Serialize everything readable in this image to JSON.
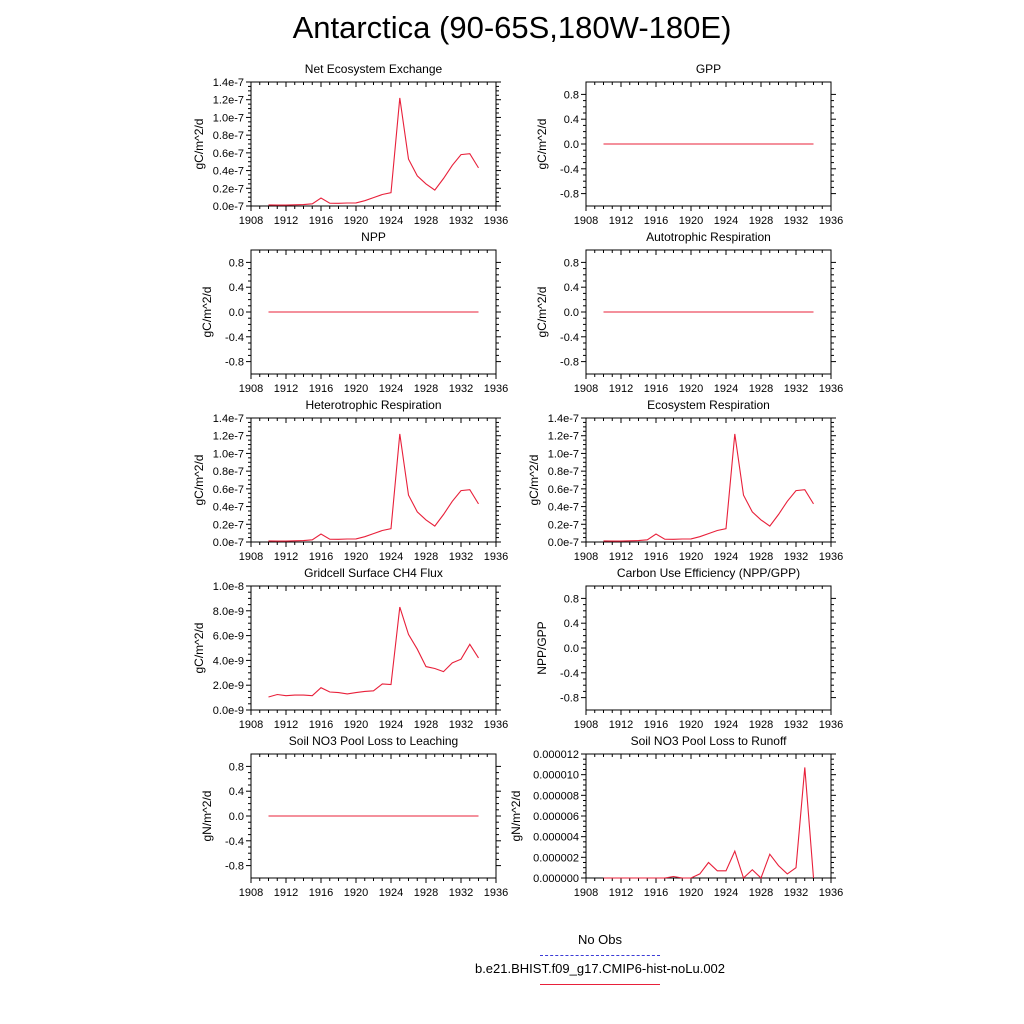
{
  "page_title": "Antarctica (90-65S,180W-180E)",
  "legend": {
    "obs_label": "No Obs",
    "obs_color": "#3b3bd6",
    "run_label": "b.e21.BHIST.f09_g17.CMIP6-hist-noLu.002",
    "run_color": "#e8203a"
  },
  "chart_data": [
    {
      "type": "line",
      "title": "Net Ecosystem Exchange",
      "ylabel": "gC/m^2/d",
      "xlim": [
        1908,
        1936
      ],
      "ylim": [
        0,
        1.4e-07
      ],
      "x_ticks": [
        "1908",
        "1912",
        "1916",
        "1920",
        "1924",
        "1928",
        "1932",
        "1936"
      ],
      "y_ticks": [
        {
          "v": 0,
          "label": "0.0e-7"
        },
        {
          "v": 2e-08,
          "label": "0.2e-7"
        },
        {
          "v": 4e-08,
          "label": "0.4e-7"
        },
        {
          "v": 6e-08,
          "label": "0.6e-7"
        },
        {
          "v": 8e-08,
          "label": "0.8e-7"
        },
        {
          "v": 1e-07,
          "label": "1.0e-7"
        },
        {
          "v": 1.2e-07,
          "label": "1.2e-7"
        },
        {
          "v": 1.4e-07,
          "label": "1.4e-7"
        }
      ],
      "x": [
        1910,
        1911,
        1912,
        1913,
        1914,
        1915,
        1916,
        1917,
        1918,
        1919,
        1920,
        1921,
        1922,
        1923,
        1924,
        1925,
        1926,
        1927,
        1928,
        1929,
        1930,
        1931,
        1932,
        1933,
        1934
      ],
      "y": [
        1.2e-09,
        1e-09,
        1e-09,
        1.3e-09,
        1.6e-09,
        2.5e-09,
        9e-09,
        3.2e-09,
        3e-09,
        3.4e-09,
        3.5e-09,
        6e-09,
        9.5e-09,
        1.3e-08,
        1.5e-08,
        1.22e-07,
        5.3e-08,
        3.4e-08,
        2.5e-08,
        1.8e-08,
        3.1e-08,
        4.6e-08,
        5.8e-08,
        5.9e-08,
        4.3e-08
      ]
    },
    {
      "type": "line",
      "title": "GPP",
      "ylabel": "gC/m^2/d",
      "xlim": [
        1908,
        1936
      ],
      "ylim": [
        -1,
        1
      ],
      "x_ticks": [
        "1908",
        "1912",
        "1916",
        "1920",
        "1924",
        "1928",
        "1932",
        "1936"
      ],
      "y_ticks": [
        {
          "v": -0.8,
          "label": "-0.8"
        },
        {
          "v": -0.4,
          "label": "-0.4"
        },
        {
          "v": 0,
          "label": "0.0"
        },
        {
          "v": 0.4,
          "label": "0.4"
        },
        {
          "v": 0.8,
          "label": "0.8"
        }
      ],
      "x": [
        1910,
        1934
      ],
      "y": [
        0,
        0
      ]
    },
    {
      "type": "line",
      "title": "NPP",
      "ylabel": "gC/m^2/d",
      "xlim": [
        1908,
        1936
      ],
      "ylim": [
        -1,
        1
      ],
      "x_ticks": [
        "1908",
        "1912",
        "1916",
        "1920",
        "1924",
        "1928",
        "1932",
        "1936"
      ],
      "y_ticks": [
        {
          "v": -0.8,
          "label": "-0.8"
        },
        {
          "v": -0.4,
          "label": "-0.4"
        },
        {
          "v": 0,
          "label": "0.0"
        },
        {
          "v": 0.4,
          "label": "0.4"
        },
        {
          "v": 0.8,
          "label": "0.8"
        }
      ],
      "x": [
        1910,
        1934
      ],
      "y": [
        0,
        0
      ]
    },
    {
      "type": "line",
      "title": "Autotrophic Respiration",
      "ylabel": "gC/m^2/d",
      "xlim": [
        1908,
        1936
      ],
      "ylim": [
        -1,
        1
      ],
      "x_ticks": [
        "1908",
        "1912",
        "1916",
        "1920",
        "1924",
        "1928",
        "1932",
        "1936"
      ],
      "y_ticks": [
        {
          "v": -0.8,
          "label": "-0.8"
        },
        {
          "v": -0.4,
          "label": "-0.4"
        },
        {
          "v": 0,
          "label": "0.0"
        },
        {
          "v": 0.4,
          "label": "0.4"
        },
        {
          "v": 0.8,
          "label": "0.8"
        }
      ],
      "x": [
        1910,
        1934
      ],
      "y": [
        0,
        0
      ]
    },
    {
      "type": "line",
      "title": "Heterotrophic Respiration",
      "ylabel": "gC/m^2/d",
      "xlim": [
        1908,
        1936
      ],
      "ylim": [
        0,
        1.4e-07
      ],
      "x_ticks": [
        "1908",
        "1912",
        "1916",
        "1920",
        "1924",
        "1928",
        "1932",
        "1936"
      ],
      "y_ticks": [
        {
          "v": 0,
          "label": "0.0e-7"
        },
        {
          "v": 2e-08,
          "label": "0.2e-7"
        },
        {
          "v": 4e-08,
          "label": "0.4e-7"
        },
        {
          "v": 6e-08,
          "label": "0.6e-7"
        },
        {
          "v": 8e-08,
          "label": "0.8e-7"
        },
        {
          "v": 1e-07,
          "label": "1.0e-7"
        },
        {
          "v": 1.2e-07,
          "label": "1.2e-7"
        },
        {
          "v": 1.4e-07,
          "label": "1.4e-7"
        }
      ],
      "x": [
        1910,
        1911,
        1912,
        1913,
        1914,
        1915,
        1916,
        1917,
        1918,
        1919,
        1920,
        1921,
        1922,
        1923,
        1924,
        1925,
        1926,
        1927,
        1928,
        1929,
        1930,
        1931,
        1932,
        1933,
        1934
      ],
      "y": [
        1.2e-09,
        1e-09,
        1e-09,
        1.3e-09,
        1.6e-09,
        2.5e-09,
        9e-09,
        3.2e-09,
        3e-09,
        3.4e-09,
        3.5e-09,
        6e-09,
        9.5e-09,
        1.3e-08,
        1.5e-08,
        1.22e-07,
        5.3e-08,
        3.4e-08,
        2.5e-08,
        1.8e-08,
        3.1e-08,
        4.6e-08,
        5.8e-08,
        5.9e-08,
        4.3e-08
      ]
    },
    {
      "type": "line",
      "title": "Ecosystem Respiration",
      "ylabel": "gC/m^2/d",
      "xlim": [
        1908,
        1936
      ],
      "ylim": [
        0,
        1.4e-07
      ],
      "x_ticks": [
        "1908",
        "1912",
        "1916",
        "1920",
        "1924",
        "1928",
        "1932",
        "1936"
      ],
      "y_ticks": [
        {
          "v": 0,
          "label": "0.0e-7"
        },
        {
          "v": 2e-08,
          "label": "0.2e-7"
        },
        {
          "v": 4e-08,
          "label": "0.4e-7"
        },
        {
          "v": 6e-08,
          "label": "0.6e-7"
        },
        {
          "v": 8e-08,
          "label": "0.8e-7"
        },
        {
          "v": 1e-07,
          "label": "1.0e-7"
        },
        {
          "v": 1.2e-07,
          "label": "1.2e-7"
        },
        {
          "v": 1.4e-07,
          "label": "1.4e-7"
        }
      ],
      "x": [
        1910,
        1911,
        1912,
        1913,
        1914,
        1915,
        1916,
        1917,
        1918,
        1919,
        1920,
        1921,
        1922,
        1923,
        1924,
        1925,
        1926,
        1927,
        1928,
        1929,
        1930,
        1931,
        1932,
        1933,
        1934
      ],
      "y": [
        1.2e-09,
        1e-09,
        1e-09,
        1.3e-09,
        1.6e-09,
        2.5e-09,
        9e-09,
        3.2e-09,
        3e-09,
        3.4e-09,
        3.5e-09,
        6e-09,
        9.5e-09,
        1.3e-08,
        1.5e-08,
        1.22e-07,
        5.3e-08,
        3.4e-08,
        2.5e-08,
        1.8e-08,
        3.1e-08,
        4.6e-08,
        5.8e-08,
        5.9e-08,
        4.3e-08
      ]
    },
    {
      "type": "line",
      "title": "Gridcell Surface CH4 Flux",
      "ylabel": "gC/m^2/d",
      "xlim": [
        1908,
        1936
      ],
      "ylim": [
        0,
        1e-08
      ],
      "x_ticks": [
        "1908",
        "1912",
        "1916",
        "1920",
        "1924",
        "1928",
        "1932",
        "1936"
      ],
      "y_ticks": [
        {
          "v": 0,
          "label": "0.0e-9"
        },
        {
          "v": 2e-09,
          "label": "2.0e-9"
        },
        {
          "v": 4e-09,
          "label": "4.0e-9"
        },
        {
          "v": 6e-09,
          "label": "6.0e-9"
        },
        {
          "v": 8e-09,
          "label": "8.0e-9"
        },
        {
          "v": 1e-08,
          "label": "1.0e-8"
        }
      ],
      "x": [
        1910,
        1911,
        1912,
        1913,
        1914,
        1915,
        1916,
        1917,
        1918,
        1919,
        1920,
        1921,
        1922,
        1923,
        1924,
        1925,
        1926,
        1927,
        1928,
        1929,
        1930,
        1931,
        1932,
        1933,
        1934
      ],
      "y": [
        1.05e-09,
        1.25e-09,
        1.15e-09,
        1.2e-09,
        1.2e-09,
        1.15e-09,
        1.8e-09,
        1.45e-09,
        1.4e-09,
        1.3e-09,
        1.4e-09,
        1.5e-09,
        1.55e-09,
        2.1e-09,
        2.05e-09,
        8.3e-09,
        6.1e-09,
        4.9e-09,
        3.5e-09,
        3.35e-09,
        3.1e-09,
        3.8e-09,
        4.1e-09,
        5.3e-09,
        4.2e-09
      ]
    },
    {
      "type": "line",
      "title": "Carbon Use Efficiency (NPP/GPP)",
      "ylabel": "NPP/GPP",
      "xlim": [
        1908,
        1936
      ],
      "ylim": [
        -1,
        1
      ],
      "x_ticks": [
        "1908",
        "1912",
        "1916",
        "1920",
        "1924",
        "1928",
        "1932",
        "1936"
      ],
      "y_ticks": [
        {
          "v": -0.8,
          "label": "-0.8"
        },
        {
          "v": -0.4,
          "label": "-0.4"
        },
        {
          "v": 0,
          "label": "0.0"
        },
        {
          "v": 0.4,
          "label": "0.4"
        },
        {
          "v": 0.8,
          "label": "0.8"
        }
      ],
      "x": [],
      "y": []
    },
    {
      "type": "line",
      "title": "Soil NO3 Pool Loss to Leaching",
      "ylabel": "gN/m^2/d",
      "xlim": [
        1908,
        1936
      ],
      "ylim": [
        -1,
        1
      ],
      "x_ticks": [
        "1908",
        "1912",
        "1916",
        "1920",
        "1924",
        "1928",
        "1932",
        "1936"
      ],
      "y_ticks": [
        {
          "v": -0.8,
          "label": "-0.8"
        },
        {
          "v": -0.4,
          "label": "-0.4"
        },
        {
          "v": 0,
          "label": "0.0"
        },
        {
          "v": 0.4,
          "label": "0.4"
        },
        {
          "v": 0.8,
          "label": "0.8"
        }
      ],
      "x": [
        1910,
        1934
      ],
      "y": [
        0,
        0
      ]
    },
    {
      "type": "line",
      "title": "Soil NO3 Pool Loss to Runoff",
      "ylabel": "gN/m^2/d",
      "xlim": [
        1908,
        1936
      ],
      "ylim": [
        0,
        1.2e-05
      ],
      "x_ticks": [
        "1908",
        "1912",
        "1916",
        "1920",
        "1924",
        "1928",
        "1932",
        "1936"
      ],
      "y_ticks": [
        {
          "v": 0,
          "label": "0.000000"
        },
        {
          "v": 2e-06,
          "label": "0.000002"
        },
        {
          "v": 4e-06,
          "label": "0.000004"
        },
        {
          "v": 6e-06,
          "label": "0.000006"
        },
        {
          "v": 8e-06,
          "label": "0.000008"
        },
        {
          "v": 1e-05,
          "label": "0.000010"
        },
        {
          "v": 1.2e-05,
          "label": "0.000012"
        }
      ],
      "x": [
        1910,
        1911,
        1912,
        1913,
        1914,
        1915,
        1916,
        1917,
        1918,
        1919,
        1920,
        1921,
        1922,
        1923,
        1924,
        1925,
        1926,
        1927,
        1928,
        1929,
        1930,
        1931,
        1932,
        1933,
        1934
      ],
      "y": [
        0,
        0,
        0,
        0,
        0,
        0,
        0,
        0,
        1.5e-07,
        0,
        0,
        4e-07,
        1.5e-06,
        7e-07,
        7e-07,
        2.6e-06,
        0,
        8e-07,
        0,
        2.3e-06,
        1.2e-06,
        4e-07,
        1e-06,
        1.07e-05,
        0
      ]
    }
  ]
}
